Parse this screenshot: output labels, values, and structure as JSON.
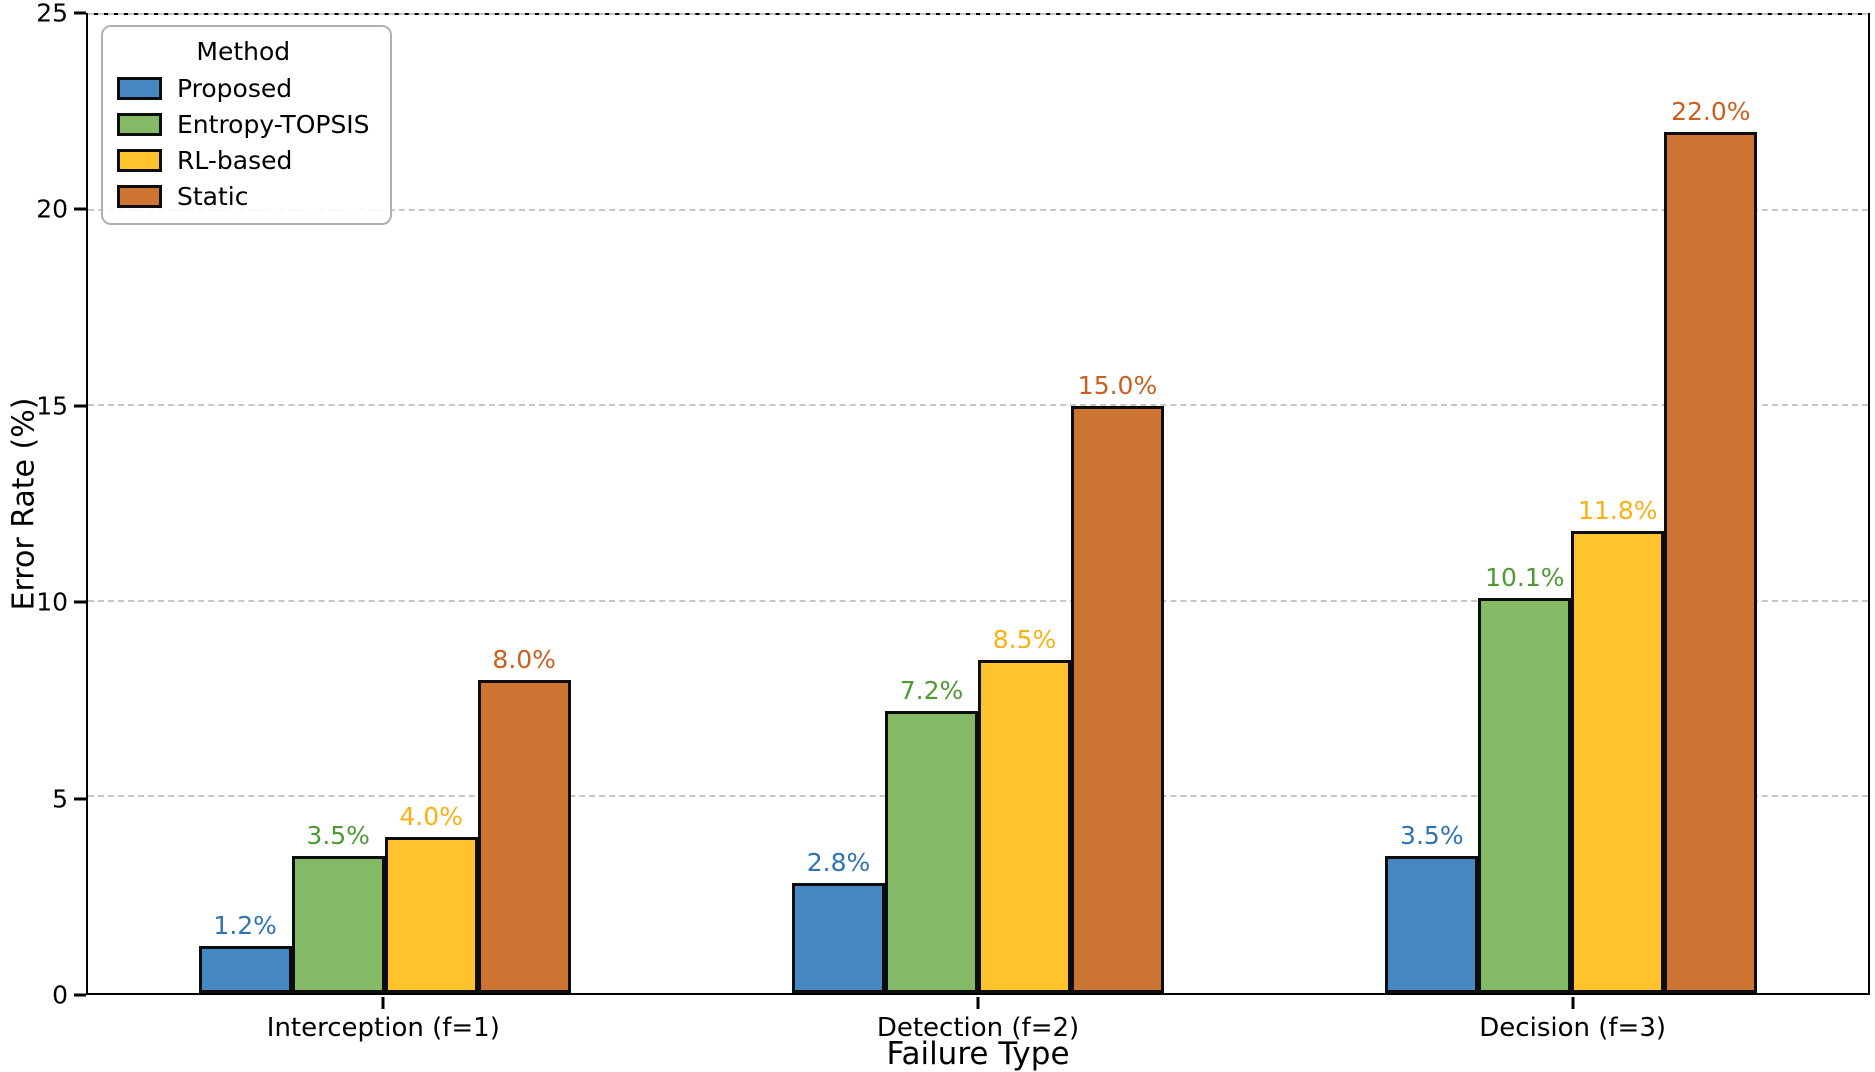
{
  "chart_data": {
    "type": "bar",
    "title": "",
    "xlabel": "Failure Type",
    "ylabel": "Error Rate (%)",
    "ylim": [
      0,
      25
    ],
    "yticks": [
      0,
      5,
      10,
      15,
      20,
      25
    ],
    "grid": "horizontal dashed gridlines at each y tick",
    "legend_position": "upper left",
    "legend_title": "Method",
    "categories": [
      "Interception (f=1)",
      "Detection (f=2)",
      "Decision (f=3)"
    ],
    "category_center_percents": [
      16.667,
      50,
      83.333
    ],
    "series": [
      {
        "name": "Proposed",
        "color": "#4787C4",
        "label_color": "#2E74B5",
        "values": [
          1.2,
          2.8,
          3.5
        ],
        "labels": [
          "1.2%",
          "2.8%",
          "3.5%"
        ]
      },
      {
        "name": "Entropy-TOPSIS",
        "color": "#84BA66",
        "label_color": "#4F9A34",
        "values": [
          3.5,
          7.2,
          10.1
        ],
        "labels": [
          "3.5%",
          "7.2%",
          "10.1%"
        ]
      },
      {
        "name": "RL-based",
        "color": "#FFC32B",
        "label_color": "#F9B112",
        "values": [
          4.0,
          8.5,
          11.8
        ],
        "labels": [
          "4.0%",
          "8.5%",
          "11.8%"
        ]
      },
      {
        "name": "Static",
        "color": "#CE7432",
        "label_color": "#C8611F",
        "values": [
          8.0,
          15.0,
          22.0
        ],
        "labels": [
          "8.0%",
          "15.0%",
          "22.0%"
        ]
      }
    ]
  }
}
